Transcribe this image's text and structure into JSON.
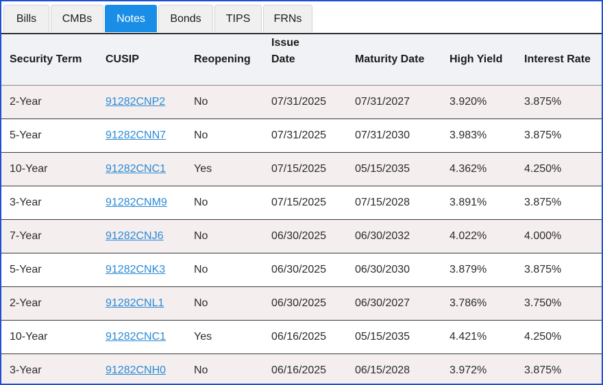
{
  "tabs": [
    {
      "label": "Bills",
      "active": false
    },
    {
      "label": "CMBs",
      "active": false
    },
    {
      "label": "Notes",
      "active": true
    },
    {
      "label": "Bonds",
      "active": false
    },
    {
      "label": "TIPS",
      "active": false
    },
    {
      "label": "FRNs",
      "active": false
    }
  ],
  "table": {
    "headers": {
      "term": "Security Term",
      "cusip": "CUSIP",
      "reopening": "Reopening",
      "issue_date_1": "Issue",
      "issue_date_2": "Date",
      "maturity_date": "Maturity Date",
      "high_yield": "High Yield",
      "interest_rate": "Interest Rate"
    },
    "rows": [
      {
        "term": "2-Year",
        "cusip": "91282CNP2",
        "reopening": "No",
        "issue_date": "07/31/2025",
        "maturity_date": "07/31/2027",
        "high_yield": "3.920%",
        "interest_rate": "3.875%"
      },
      {
        "term": "5-Year",
        "cusip": "91282CNN7",
        "reopening": "No",
        "issue_date": "07/31/2025",
        "maturity_date": "07/31/2030",
        "high_yield": "3.983%",
        "interest_rate": "3.875%"
      },
      {
        "term": "10-Year",
        "cusip": "91282CNC1",
        "reopening": "Yes",
        "issue_date": "07/15/2025",
        "maturity_date": "05/15/2035",
        "high_yield": "4.362%",
        "interest_rate": "4.250%"
      },
      {
        "term": "3-Year",
        "cusip": "91282CNM9",
        "reopening": "No",
        "issue_date": "07/15/2025",
        "maturity_date": "07/15/2028",
        "high_yield": "3.891%",
        "interest_rate": "3.875%"
      },
      {
        "term": "7-Year",
        "cusip": "91282CNJ6",
        "reopening": "No",
        "issue_date": "06/30/2025",
        "maturity_date": "06/30/2032",
        "high_yield": "4.022%",
        "interest_rate": "4.000%"
      },
      {
        "term": "5-Year",
        "cusip": "91282CNK3",
        "reopening": "No",
        "issue_date": "06/30/2025",
        "maturity_date": "06/30/2030",
        "high_yield": "3.879%",
        "interest_rate": "3.875%"
      },
      {
        "term": "2-Year",
        "cusip": "91282CNL1",
        "reopening": "No",
        "issue_date": "06/30/2025",
        "maturity_date": "06/30/2027",
        "high_yield": "3.786%",
        "interest_rate": "3.750%"
      },
      {
        "term": "10-Year",
        "cusip": "91282CNC1",
        "reopening": "Yes",
        "issue_date": "06/16/2025",
        "maturity_date": "05/15/2035",
        "high_yield": "4.421%",
        "interest_rate": "4.250%"
      },
      {
        "term": "3-Year",
        "cusip": "91282CNH0",
        "reopening": "No",
        "issue_date": "06/16/2025",
        "maturity_date": "06/15/2028",
        "high_yield": "3.972%",
        "interest_rate": "3.875%"
      }
    ]
  },
  "colors": {
    "frame_border": "#1d4fd1",
    "active_tab": "#1a8ee6",
    "link": "#2a8ad6",
    "header_bg": "#f0f2f5",
    "odd_row_bg": "#f4eeee"
  }
}
